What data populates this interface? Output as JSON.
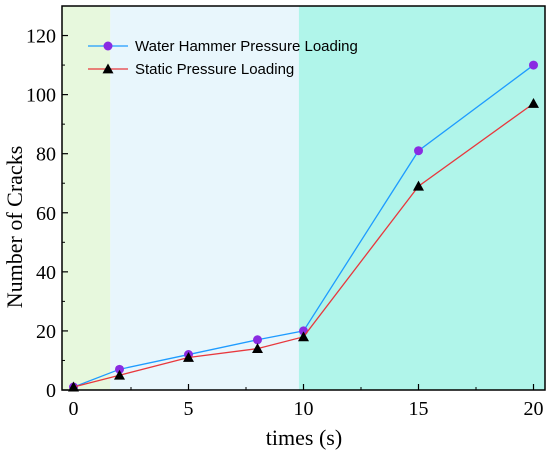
{
  "chart_data": {
    "type": "line",
    "xlabel": "times (s)",
    "ylabel": "Number of Cracks",
    "xlim": [
      -0.5,
      20.5
    ],
    "ylim": [
      0,
      130
    ],
    "xticks": [
      0,
      5,
      10,
      15,
      20
    ],
    "yticks": [
      0,
      20,
      40,
      60,
      80,
      100,
      120
    ],
    "legend_position": "top-left",
    "grid": false,
    "background_bands": [
      {
        "x_range": [
          -0.5,
          1.6
        ],
        "color": "#e7f8dd"
      },
      {
        "x_range": [
          1.6,
          9.8
        ],
        "color": "#e8f6fc"
      },
      {
        "x_range": [
          9.8,
          20.5
        ],
        "color": "#b0f5ea"
      }
    ],
    "series": [
      {
        "name": "Water Hammer Pressure Loading",
        "line_color": "#1e9bff",
        "marker": "circle",
        "marker_color": "#8a2be2",
        "x": [
          0,
          2,
          5,
          8,
          10,
          15,
          20
        ],
        "y": [
          1,
          7,
          12,
          17,
          20,
          81,
          110
        ]
      },
      {
        "name": "Static Pressure Loading",
        "line_color": "#e8383d",
        "marker": "triangle",
        "marker_color": "#000000",
        "x": [
          0,
          2,
          5,
          8,
          10,
          15,
          20
        ],
        "y": [
          1,
          5,
          11,
          14,
          18,
          69,
          97
        ]
      }
    ]
  }
}
